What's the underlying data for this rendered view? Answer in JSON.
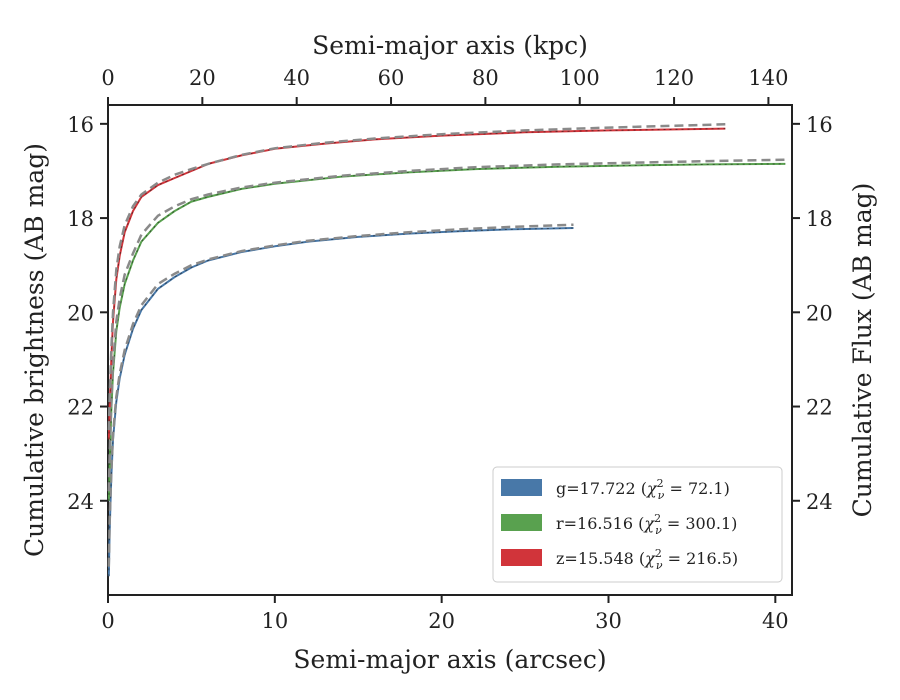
{
  "chart_data": {
    "type": "line",
    "xlabel": "Semi-major axis (arcsec)",
    "x2label": "Semi-major axis (kpc)",
    "ylabel": "Cumulative brightness (AB mag)",
    "y2label": "Cumulative Flux (AB mag)",
    "xlim": [
      0,
      41
    ],
    "x2lim": [
      0,
      145
    ],
    "ylim": [
      26,
      15.6
    ],
    "yinverted": true,
    "xticks": [
      0,
      10,
      20,
      30,
      40
    ],
    "x2ticks": [
      0,
      20,
      40,
      60,
      80,
      100,
      120,
      140
    ],
    "yticks": [
      16,
      18,
      20,
      22,
      24
    ],
    "y2ticks": [
      16,
      18,
      20,
      22,
      24
    ],
    "grid": false,
    "legend_position": "lower-right",
    "series": [
      {
        "name": "g=17.722",
        "chi_label": "72.1",
        "color": "#4878a8",
        "x": [
          0.05,
          0.1,
          0.2,
          0.3,
          0.5,
          0.7,
          1.0,
          1.5,
          2.0,
          3.0,
          4.0,
          5.0,
          6.0,
          8.0,
          10.0,
          12.0,
          15.0,
          18.0,
          21.0,
          24.0,
          27.9
        ],
        "y": [
          25.6,
          24.6,
          23.5,
          22.7,
          21.9,
          21.4,
          20.9,
          20.35,
          19.95,
          19.5,
          19.25,
          19.05,
          18.9,
          18.72,
          18.6,
          18.5,
          18.4,
          18.33,
          18.28,
          18.24,
          18.21
        ],
        "model_y": [
          25.4,
          24.4,
          23.4,
          22.6,
          21.8,
          21.3,
          20.8,
          20.25,
          19.85,
          19.4,
          19.18,
          19.0,
          18.88,
          18.7,
          18.58,
          18.48,
          18.38,
          18.3,
          18.24,
          18.19,
          18.14
        ]
      },
      {
        "name": "r=16.516",
        "chi_label": "300.1",
        "color": "#59a14f",
        "x": [
          0.05,
          0.1,
          0.2,
          0.3,
          0.5,
          0.7,
          1.0,
          1.5,
          2.0,
          3.0,
          4.0,
          5.0,
          6.0,
          8.0,
          10.0,
          14.0,
          18.0,
          22.0,
          27.0,
          32.0,
          36.0,
          40.6
        ],
        "y": [
          24.0,
          23.2,
          22.1,
          21.3,
          20.4,
          19.9,
          19.4,
          18.9,
          18.5,
          18.1,
          17.85,
          17.65,
          17.55,
          17.38,
          17.27,
          17.12,
          17.03,
          16.96,
          16.91,
          16.88,
          16.86,
          16.85
        ],
        "model_y": [
          23.8,
          23.0,
          21.9,
          21.1,
          20.2,
          19.7,
          19.2,
          18.75,
          18.35,
          17.95,
          17.75,
          17.6,
          17.5,
          17.35,
          17.25,
          17.1,
          17.0,
          16.92,
          16.86,
          16.82,
          16.79,
          16.76
        ]
      },
      {
        "name": "z=15.548",
        "chi_label": "216.5",
        "color": "#d1343a",
        "x": [
          0.05,
          0.1,
          0.2,
          0.3,
          0.5,
          0.7,
          1.0,
          1.5,
          2.0,
          3.0,
          4.0,
          5.0,
          6.0,
          8.0,
          10.0,
          13.0,
          16.0,
          20.0,
          25.0,
          30.0,
          37.0
        ],
        "y": [
          22.7,
          22.0,
          21.0,
          20.2,
          19.3,
          18.8,
          18.3,
          17.85,
          17.55,
          17.3,
          17.15,
          17.0,
          16.85,
          16.67,
          16.53,
          16.42,
          16.33,
          16.25,
          16.18,
          16.14,
          16.1
        ],
        "model_y": [
          22.5,
          21.8,
          20.8,
          20.0,
          19.1,
          18.6,
          18.15,
          17.75,
          17.5,
          17.25,
          17.08,
          16.96,
          16.85,
          16.66,
          16.52,
          16.4,
          16.31,
          16.22,
          16.14,
          16.08,
          16.01
        ]
      }
    ]
  }
}
